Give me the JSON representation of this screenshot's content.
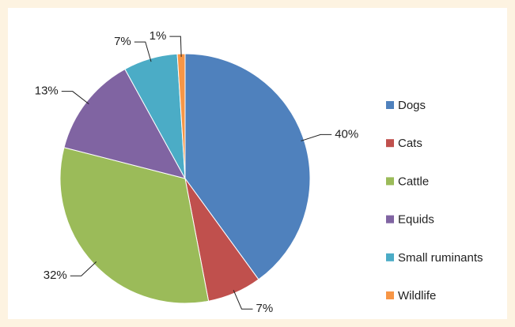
{
  "chart_data": {
    "type": "pie",
    "categories": [
      "Dogs",
      "Cats",
      "Cattle",
      "Equids",
      "Small ruminants",
      "Wildlife"
    ],
    "values": [
      40,
      7,
      32,
      13,
      7,
      1
    ],
    "value_labels": [
      "40%",
      "7%",
      "32%",
      "13%",
      "7%",
      "1%"
    ],
    "colors": [
      "#4f81bd",
      "#c0504d",
      "#9bbb59",
      "#8064a2",
      "#4bacc6",
      "#f79646"
    ],
    "legend": "right"
  }
}
